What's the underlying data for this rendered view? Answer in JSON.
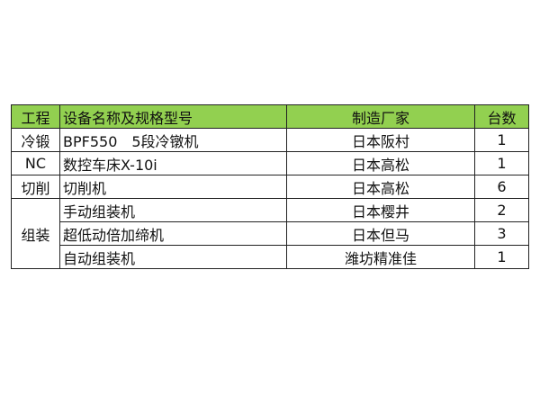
{
  "colors": {
    "header_bg": "#92D050"
  },
  "headers": [
    "工程",
    "设备名称及规格型号",
    "制造厂家",
    "台数"
  ],
  "rows": [
    {
      "process": "冷锻",
      "equipment": "BPF550　5段冷镦机",
      "maker": "日本阪村",
      "qty": "1"
    },
    {
      "process": "NC",
      "equipment": "数控车床X-10i",
      "maker": "日本高松",
      "qty": "1"
    },
    {
      "process": "切削",
      "equipment": "切削机",
      "maker": "日本高松",
      "qty": "6"
    },
    {
      "process": "组装",
      "equipment": "手动组装机",
      "maker": "日本樱井",
      "qty": "2"
    },
    {
      "equipment": "超低动倍加缔机",
      "maker": "日本但马",
      "qty": "3"
    },
    {
      "equipment": "自动组装机",
      "maker": "潍坊精准佳",
      "qty": "1"
    }
  ]
}
